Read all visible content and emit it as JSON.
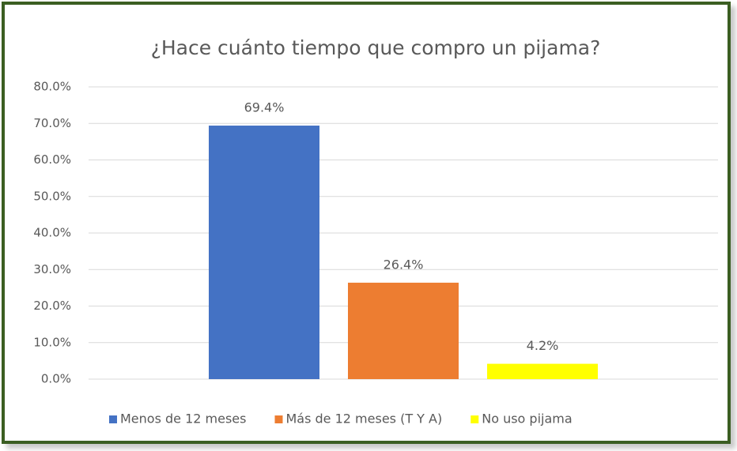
{
  "chart_data": {
    "type": "bar",
    "title": "¿Hace cuánto tiempo que compro un pijama?",
    "categories": [
      null
    ],
    "series": [
      {
        "name": "Menos de 12 meses",
        "color": "#4472c4",
        "values": [
          69.4
        ],
        "value_labels": [
          "69.4%"
        ]
      },
      {
        "name": "Más de 12 meses (T Y A)",
        "color": "#ed7d31",
        "values": [
          26.4
        ],
        "value_labels": [
          "26.4%"
        ]
      },
      {
        "name": "No uso pijama",
        "color": "#ffff00",
        "values": [
          4.2
        ],
        "value_labels": [
          "4.2%"
        ]
      }
    ],
    "ylim": [
      0,
      80
    ],
    "yticks": [
      {
        "value": 0,
        "label": "0.0%"
      },
      {
        "value": 10,
        "label": "10.0%"
      },
      {
        "value": 20,
        "label": "20.0%"
      },
      {
        "value": 30,
        "label": "30.0%"
      },
      {
        "value": 40,
        "label": "40.0%"
      },
      {
        "value": 50,
        "label": "50.0%"
      },
      {
        "value": 60,
        "label": "60.0%"
      },
      {
        "value": 70,
        "label": "70.0%"
      },
      {
        "value": 80,
        "label": "80.0%"
      }
    ],
    "grid": true,
    "legend": "bottom"
  }
}
